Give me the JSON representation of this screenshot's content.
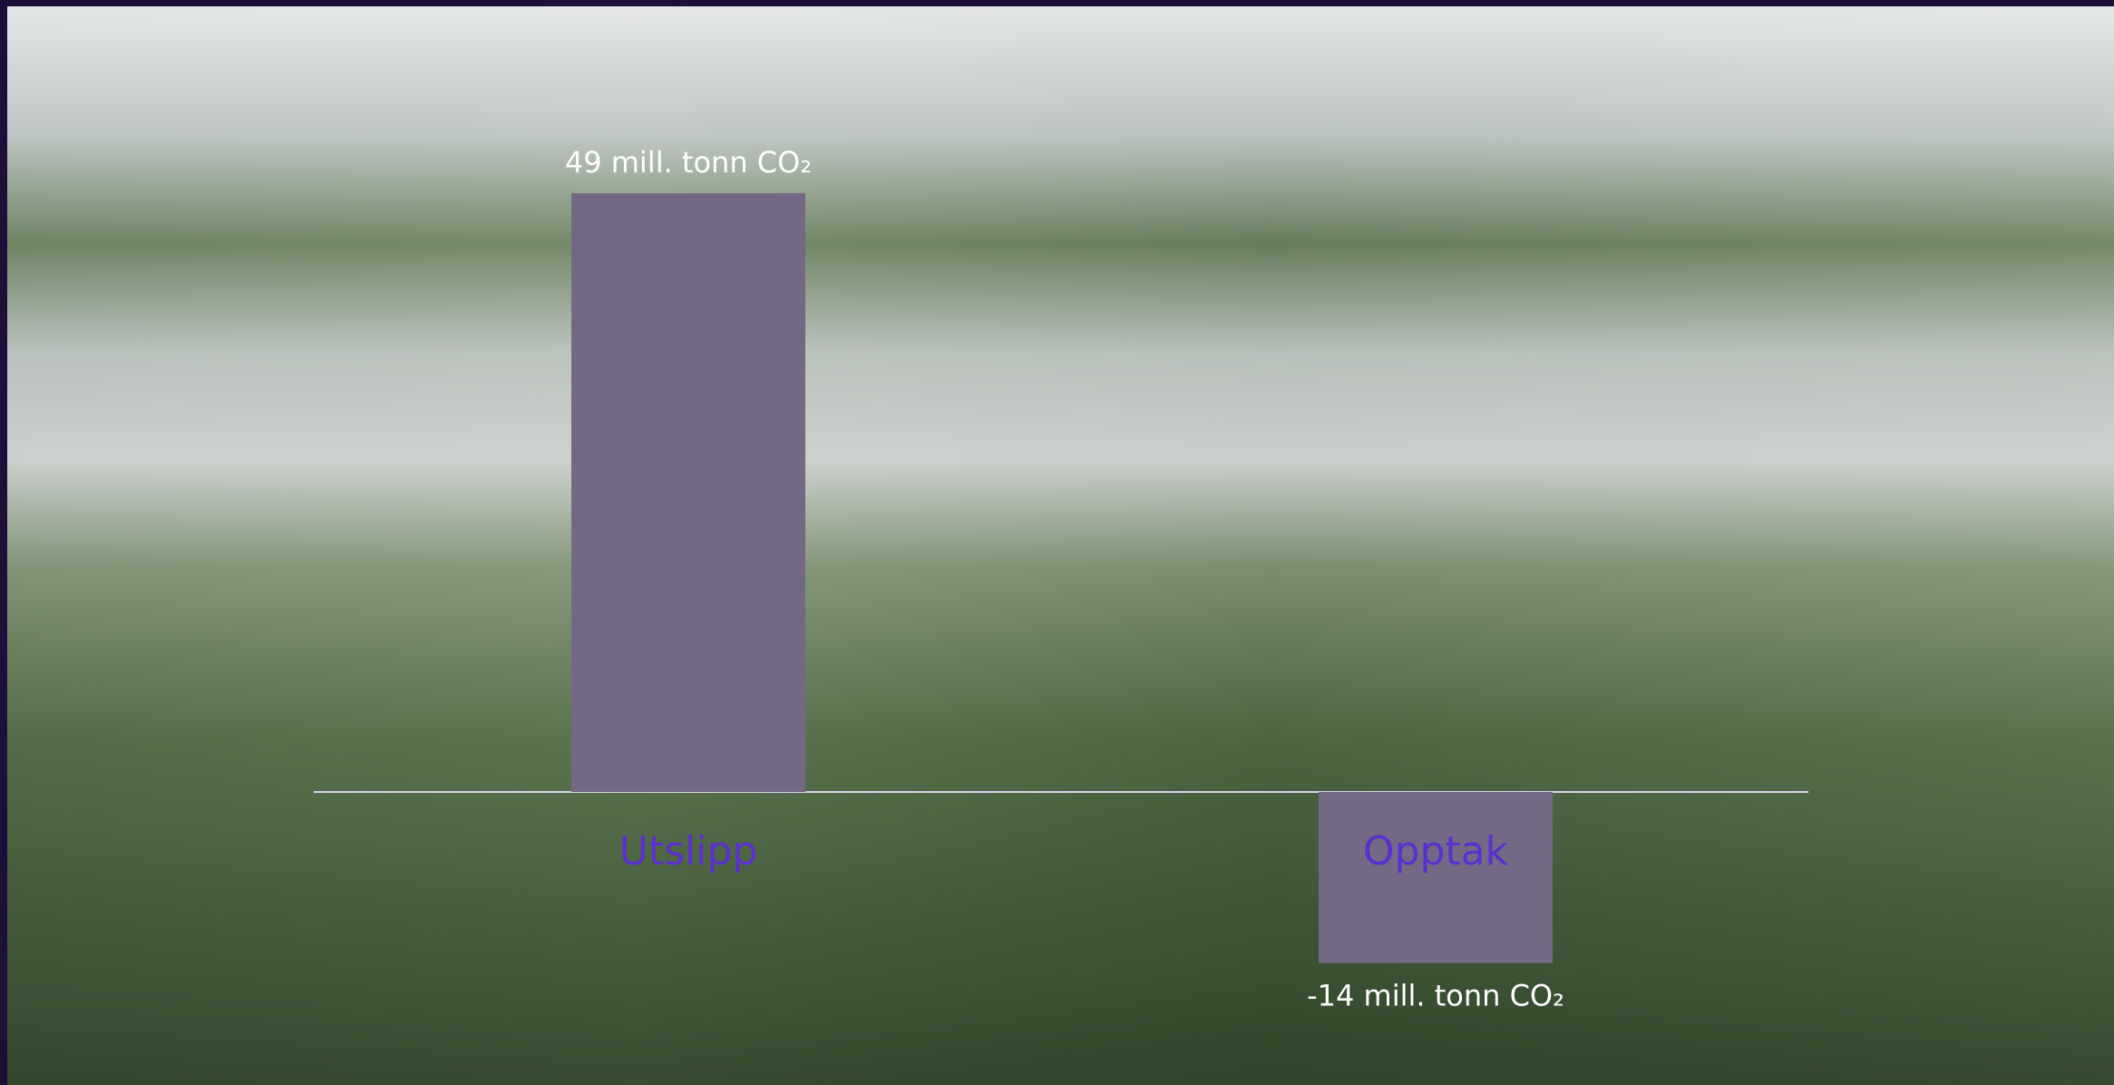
{
  "chart_data": {
    "type": "bar",
    "categories": [
      "Utslipp",
      "Opptak"
    ],
    "values": [
      49,
      -14
    ],
    "value_labels": [
      "49 mill. tonn CO₂",
      "-14 mill. tonn CO₂"
    ],
    "color": "#736985"
  }
}
